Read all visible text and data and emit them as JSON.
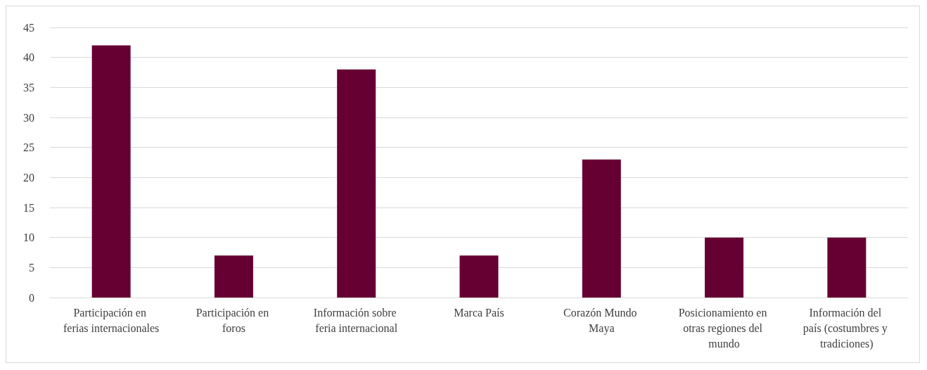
{
  "chart_data": {
    "type": "bar",
    "categories": [
      "Participación en ferias internacionales",
      "Participación en foros",
      "Información sobre feria internacional",
      "Marca País",
      "Corazón Mundo Maya",
      "Posicionamiento en otras regiones del mundo",
      "Información del país (costumbres y tradiciones)"
    ],
    "values": [
      42,
      7,
      38,
      7,
      23,
      10,
      10
    ],
    "color": "#660033",
    "ylim": [
      0,
      45
    ],
    "yticks": [
      0,
      5,
      10,
      15,
      20,
      25,
      30,
      35,
      40,
      45
    ],
    "grid": "y"
  }
}
